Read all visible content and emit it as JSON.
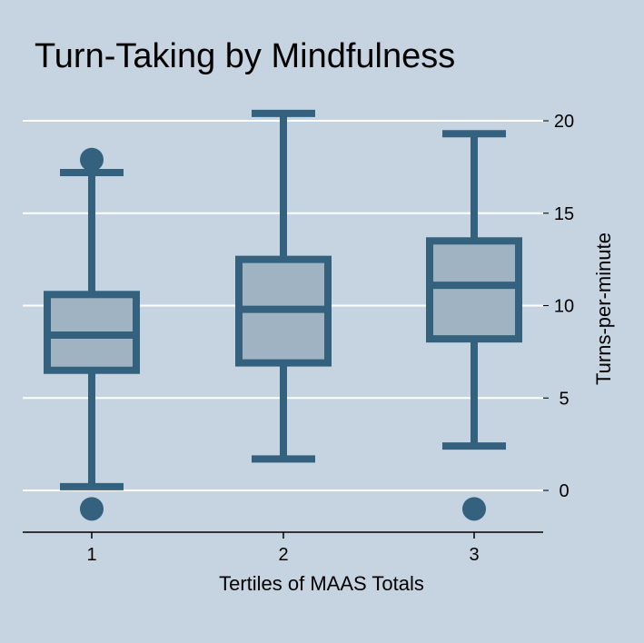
{
  "chart_data": {
    "type": "box",
    "title": "Turn-Taking by Mindfulness",
    "xlabel": "Tertiles of MAAS Totals",
    "ylabel": "Turns-per-minute",
    "categories": [
      "1",
      "2",
      "3"
    ],
    "yticks": [
      "0",
      "5",
      "10",
      "15",
      "20"
    ],
    "ylim": [
      -2.2,
      21.5
    ],
    "y_axis_side": "right",
    "grid": true,
    "boxes": [
      {
        "category": "1",
        "whisker_low": 0.2,
        "q1": 6.5,
        "median": 8.4,
        "q3": 10.6,
        "whisker_high": 17.2,
        "outliers": [
          17.9,
          -1.0
        ]
      },
      {
        "category": "2",
        "whisker_low": 1.7,
        "q1": 6.9,
        "median": 9.8,
        "q3": 12.5,
        "whisker_high": 20.4,
        "outliers": []
      },
      {
        "category": "3",
        "whisker_low": 2.4,
        "q1": 8.2,
        "median": 11.1,
        "q3": 13.5,
        "whisker_high": 19.3,
        "outliers": [
          -1.0
        ]
      }
    ]
  },
  "colors": {
    "background": "#c6d3e0",
    "box_fill": "#9fb3c3",
    "stroke": "#33617e",
    "grid": "#ffffff",
    "axis": "#000000"
  }
}
